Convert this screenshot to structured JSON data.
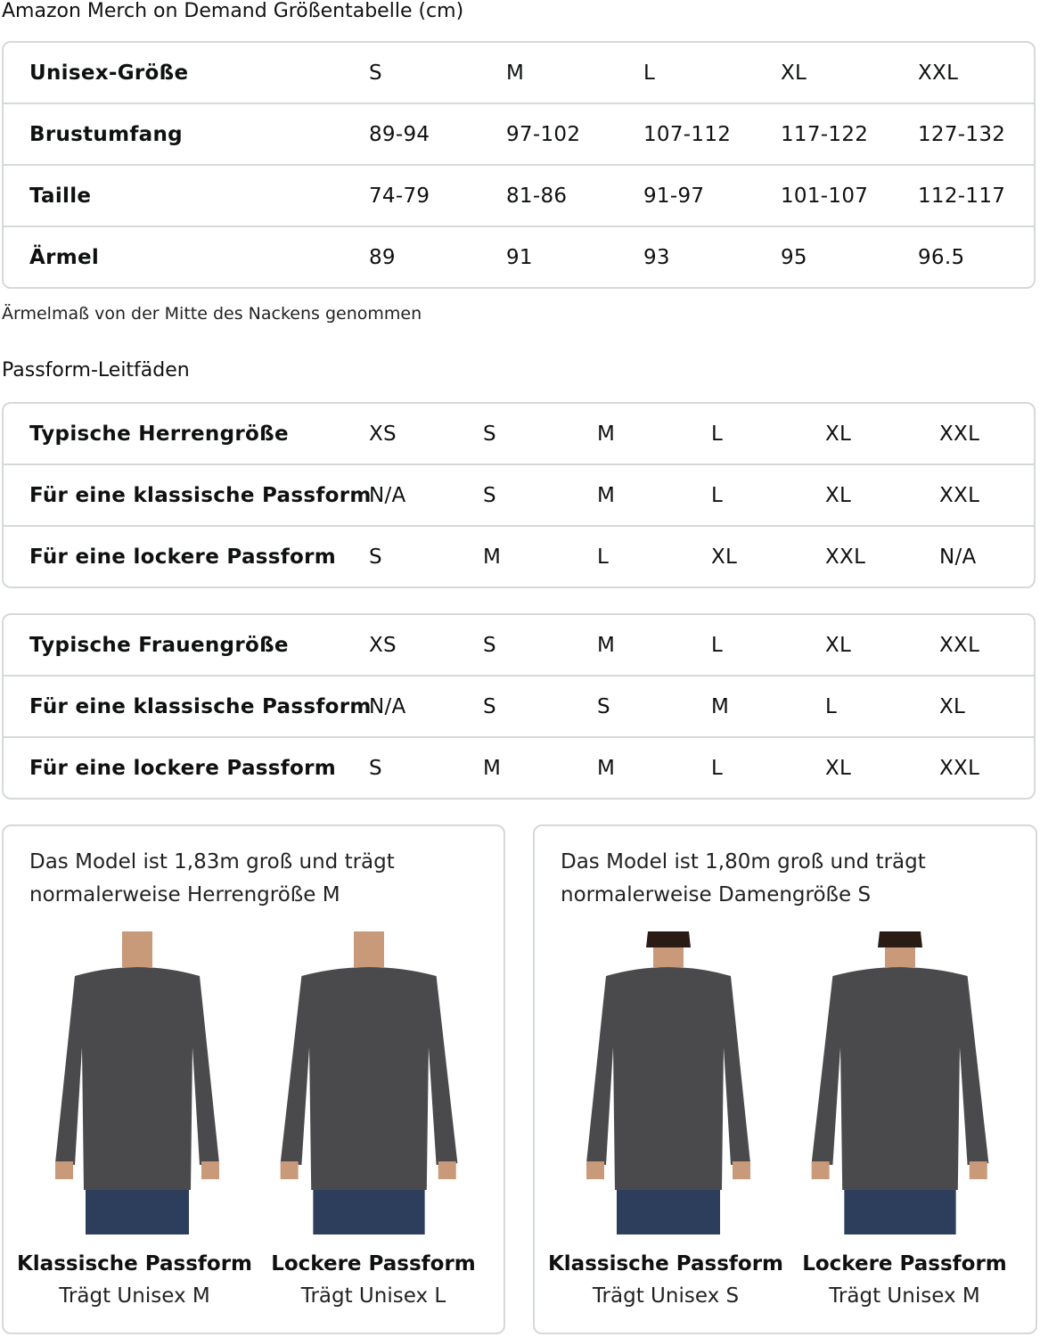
{
  "title": "Amazon Merch on Demand Größentabelle (cm)",
  "unisex_table": {
    "rows": [
      [
        "Unisex-Größe",
        "S",
        "M",
        "L",
        "XL",
        "XXL"
      ],
      [
        "Brustumfang",
        "89-94",
        "97-102",
        "107-112",
        "117-122",
        "127-132"
      ],
      [
        "Taille",
        "74-79",
        "81-86",
        "91-97",
        "101-107",
        "112-117"
      ],
      [
        "Ärmel",
        "89",
        "91",
        "93",
        "95",
        "96.5"
      ]
    ]
  },
  "sleeve_note": "Ärmelmaß von der Mitte des Nackens genommen",
  "fit_guides_title": "Passform-Leitfäden",
  "men_table": {
    "rows": [
      [
        "Typische Herrengröße",
        "XS",
        "S",
        "M",
        "L",
        "XL",
        "XXL"
      ],
      [
        "Für eine klassische Passform",
        "N/A",
        "S",
        "M",
        "L",
        "XL",
        "XXL"
      ],
      [
        "Für eine lockere Passform",
        "S",
        "M",
        "L",
        "XL",
        "XXL",
        "N/A"
      ]
    ]
  },
  "women_table": {
    "rows": [
      [
        "Typische Frauengröße",
        "XS",
        "S",
        "M",
        "L",
        "XL",
        "XXL"
      ],
      [
        "Für eine klassische Passform",
        "N/A",
        "S",
        "S",
        "M",
        "L",
        "XL"
      ],
      [
        "Für eine lockere Passform",
        "S",
        "M",
        "M",
        "L",
        "XL",
        "XXL"
      ]
    ]
  },
  "cards": [
    {
      "desc1": "Das Model ist 1,83m groß und trägt",
      "desc2": "normalerweise Herrengröße M",
      "figures": [
        {
          "title": "Klassische Passform",
          "sub": "Trägt Unisex M"
        },
        {
          "title": "Lockere Passform",
          "sub": "Trägt Unisex L"
        }
      ]
    },
    {
      "desc1": "Das Model ist 1,80m groß und trägt",
      "desc2": "normalerweise Damengröße S",
      "figures": [
        {
          "title": "Klassische Passform",
          "sub": "Trägt Unisex S"
        },
        {
          "title": "Lockere Passform",
          "sub": "Trägt Unisex M"
        }
      ]
    }
  ],
  "colors": {
    "border": "#d5d9d9",
    "sweatshirt": "#4a4a4c",
    "jeans": "#2c3e5c",
    "skin": "#c99a7a"
  }
}
